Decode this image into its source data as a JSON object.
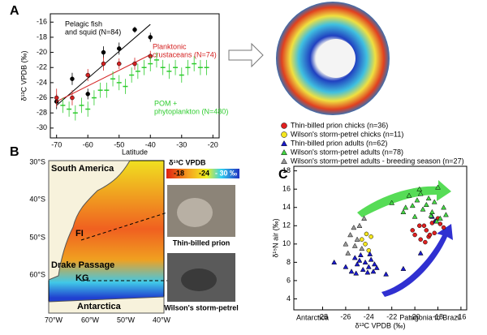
{
  "panel_labels": [
    "A",
    "B",
    "C"
  ],
  "chart_data": [
    {
      "type": "scatter",
      "x_label": "Latitude",
      "y_label": "δ¹³C VPDB (‰)",
      "xlim": [
        -72,
        -18
      ],
      "xticks": [
        -70,
        -60,
        -50,
        -40,
        -30,
        -20
      ],
      "ylim": [
        -31.3,
        -14.9
      ],
      "yticks": [
        -30,
        -28,
        -26,
        -24,
        -22,
        -20,
        -18,
        -16
      ],
      "annotations": [
        {
          "lines": [
            "Pelagic fish",
            "and squid (N=84)"
          ],
          "color": "#000000"
        },
        {
          "lines": [
            "Planktonic",
            "crustaceans (N=74)"
          ],
          "color": "#d42020"
        },
        {
          "lines": [
            "POM +",
            "phytoplankton (N=480)"
          ],
          "color": "#2ecc2e"
        }
      ],
      "series": [
        {
          "color": "#000000",
          "marker": "circle",
          "x": [
            -70,
            -65,
            -60,
            -55,
            -50,
            -45,
            -40
          ],
          "values": [
            -26.5,
            -23.5,
            -25.5,
            -20,
            -19.5,
            -17,
            -18
          ],
          "errors": [
            1,
            0.8,
            0.7,
            0.8,
            0.8,
            0.4,
            0.6
          ],
          "fit_x": [
            -70,
            -40
          ],
          "fit_y": [
            -27,
            -16.3
          ]
        },
        {
          "color": "#d42020",
          "marker": "circle",
          "x": [
            -70,
            -65,
            -60,
            -55,
            -50,
            -45,
            -40
          ],
          "values": [
            -26,
            -26,
            -23,
            -21.5,
            -21.5,
            -21.5,
            -20.5
          ],
          "errors": [
            1.2,
            1,
            0.8,
            0.9,
            0.7,
            0.8,
            0.7
          ],
          "fit_x": [
            -70,
            -40
          ],
          "fit_y": [
            -26.5,
            -20.3
          ]
        },
        {
          "color": "#2ecc2e",
          "marker": "dash",
          "x": [
            -68,
            -66,
            -64,
            -62,
            -60,
            -58,
            -56,
            -54,
            -52,
            -50,
            -48,
            -46,
            -44,
            -42,
            -40,
            -38,
            -36,
            -34,
            -32,
            -30,
            -28,
            -26,
            -24,
            -22
          ],
          "values": [
            -27,
            -27.5,
            -28,
            -27,
            -27.5,
            -26,
            -25,
            -25,
            -23.5,
            -24,
            -24.5,
            -23,
            -22.5,
            -22,
            -21.5,
            -21,
            -22,
            -22.5,
            -22,
            -23,
            -22,
            -21.5,
            -22,
            -22
          ],
          "errors": [
            1,
            1,
            1,
            1,
            1,
            1,
            1,
            1,
            1,
            1,
            1,
            1,
            1,
            1,
            1,
            1,
            1,
            1,
            1,
            1,
            1,
            1,
            1,
            1
          ]
        }
      ]
    },
    {
      "type": "scatter",
      "x_label": "δ¹³C VPDB (‰)",
      "y_label": "δ¹⁵N air (‰)",
      "x_notes": [
        "Antarctica",
        "Patagonia to Brazil"
      ],
      "xlim": [
        -30.5,
        -15.5
      ],
      "xticks": [
        -28,
        -26,
        -24,
        -22,
        -20,
        -18,
        -16
      ],
      "ylim": [
        2.8,
        18.5
      ],
      "yticks": [
        4,
        6,
        8,
        10,
        12,
        14,
        16,
        18
      ],
      "series": [
        {
          "name": "Thin-billed prion chicks (n=36)",
          "color": "#e02020",
          "marker": "circle",
          "x": [
            -20,
            -19.5,
            -19.2,
            -19,
            -18.8,
            -18.5,
            -18.3,
            -18,
            -17.8,
            -17.5,
            -19.6,
            -19.1,
            -18.7,
            -18.2,
            -20.2
          ],
          "values": [
            11,
            10.5,
            12,
            11.5,
            10.8,
            12.3,
            11.2,
            12.8,
            12.2,
            11.8,
            12,
            10.2,
            11,
            12.5,
            11.5
          ]
        },
        {
          "name": "Wilson's storm-petrel chicks (n=11)",
          "color": "#f5e61e",
          "marker": "circle",
          "x": [
            -24.6,
            -24.3,
            -24,
            -23.8,
            -24.2
          ],
          "values": [
            10.5,
            10,
            9.3,
            10.8,
            11.1
          ]
        },
        {
          "name": "Thin-billed prion adults (n=62)",
          "color": "#1a1acc",
          "marker": "triangle",
          "x": [
            -27,
            -26,
            -25.5,
            -25.2,
            -25,
            -24.8,
            -24.5,
            -24.3,
            -24,
            -23.8,
            -23.5,
            -23.3,
            -25.1,
            -24.7,
            -24.1,
            -23.9,
            -23.6,
            -22.5,
            -21,
            -19.5,
            -18.5,
            -18.2
          ],
          "values": [
            8,
            7.5,
            7,
            8.5,
            7.8,
            8.2,
            7.2,
            8,
            7.5,
            8.3,
            7.8,
            7.4,
            6.8,
            8.8,
            6.9,
            8.9,
            7,
            6.7,
            7.3,
            9,
            13,
            12.5
          ]
        },
        {
          "name": "Wilson's storm-petrel adults (n=78)",
          "color": "#44d844",
          "marker": "triangle",
          "x": [
            -22,
            -21,
            -20.5,
            -20.2,
            -20,
            -19.8,
            -19.5,
            -19.3,
            -19,
            -18.8,
            -18.5,
            -18.3,
            -18,
            -17.8,
            -17.5,
            -17.3,
            -19.6,
            -18.6,
            -20.8,
            -18.1
          ],
          "values": [
            14.5,
            13.5,
            15.3,
            14.2,
            13,
            14.8,
            15.5,
            13.8,
            14.3,
            15,
            13.5,
            14.6,
            16.2,
            12.8,
            14,
            13.2,
            16,
            13.1,
            14,
            12.5
          ]
        },
        {
          "name": "Wilson's storm-petrel adults - breeding season (n=27)",
          "color": "#999999",
          "marker": "triangle",
          "x": [
            -26,
            -25.6,
            -25.3,
            -25,
            -24.8,
            -24.6,
            -24.4,
            -25.8,
            -25.2
          ],
          "values": [
            10,
            11,
            11.8,
            10.5,
            12,
            9.5,
            12.8,
            9,
            9.8
          ]
        }
      ]
    }
  ],
  "map": {
    "lat_labels": [
      "30°S",
      "40°S",
      "50°S",
      "60°S"
    ],
    "lon_labels": [
      "70°W",
      "60°W",
      "50°W",
      "40°W"
    ],
    "places": [
      "South America",
      "FI",
      "Drake Passage",
      "KG",
      "Antarctica"
    ],
    "colorbar_title": "δ¹³C VPDB",
    "colorbar_labels": [
      "-18",
      "-24",
      "- 30 ‰"
    ],
    "photo_captions": [
      "Thin-billed prion",
      "Wilson's storm-petrel"
    ]
  }
}
